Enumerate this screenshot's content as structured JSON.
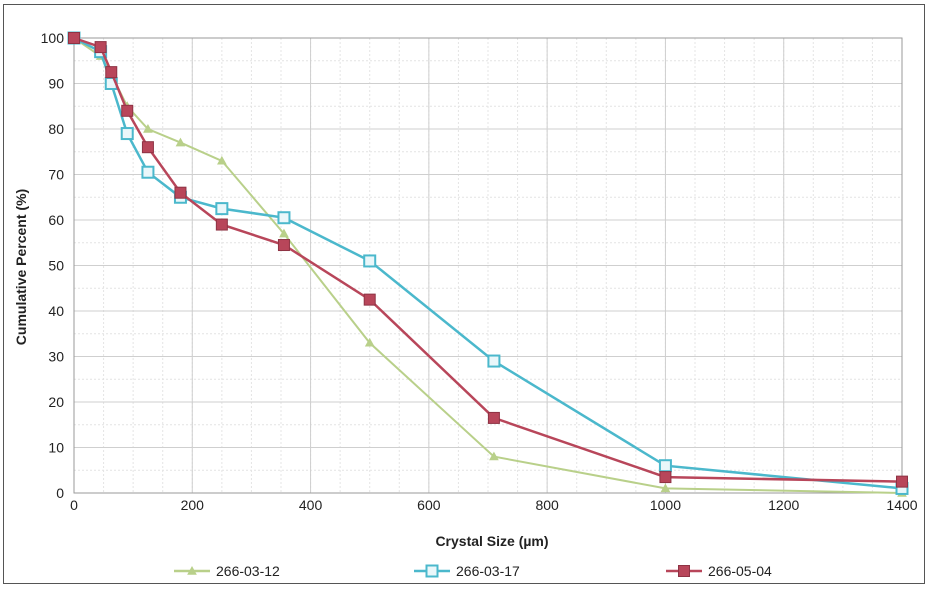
{
  "chart_data": {
    "type": "line",
    "title": "",
    "xlabel": "Crystal Size (µm)",
    "ylabel": "Cumulative Percent (%)",
    "xlim": [
      0,
      1400
    ],
    "ylim": [
      0,
      100
    ],
    "x_ticks": [
      0,
      200,
      400,
      600,
      800,
      1000,
      1200,
      1400
    ],
    "y_ticks": [
      0,
      10,
      20,
      30,
      40,
      50,
      60,
      70,
      80,
      90,
      100
    ],
    "grid": true,
    "legend_position": "bottom",
    "series": [
      {
        "name": "266-03-12",
        "color": "#b9d08a",
        "marker": "triangle",
        "points": [
          [
            0,
            100
          ],
          [
            45,
            96
          ],
          [
            63,
            92
          ],
          [
            90,
            85
          ],
          [
            125,
            80
          ],
          [
            180,
            77
          ],
          [
            250,
            73
          ],
          [
            355,
            57
          ],
          [
            500,
            33
          ],
          [
            710,
            8
          ],
          [
            1000,
            1
          ],
          [
            1400,
            0
          ]
        ]
      },
      {
        "name": "266-03-17",
        "color": "#4bb8cc",
        "marker": "square-open",
        "points": [
          [
            0,
            100
          ],
          [
            45,
            97
          ],
          [
            63,
            90
          ],
          [
            90,
            79
          ],
          [
            125,
            70.5
          ],
          [
            180,
            65
          ],
          [
            250,
            62.5
          ],
          [
            355,
            60.5
          ],
          [
            500,
            51
          ],
          [
            710,
            29
          ],
          [
            1000,
            6
          ],
          [
            1400,
            1
          ]
        ]
      },
      {
        "name": "266-05-04",
        "color": "#b8465a",
        "marker": "square-filled",
        "points": [
          [
            0,
            100
          ],
          [
            45,
            98
          ],
          [
            63,
            92.5
          ],
          [
            90,
            84
          ],
          [
            125,
            76
          ],
          [
            180,
            66
          ],
          [
            250,
            59
          ],
          [
            355,
            54.5
          ],
          [
            500,
            42.5
          ],
          [
            710,
            16.5
          ],
          [
            1000,
            3.5
          ],
          [
            1400,
            2.5
          ]
        ]
      }
    ]
  }
}
